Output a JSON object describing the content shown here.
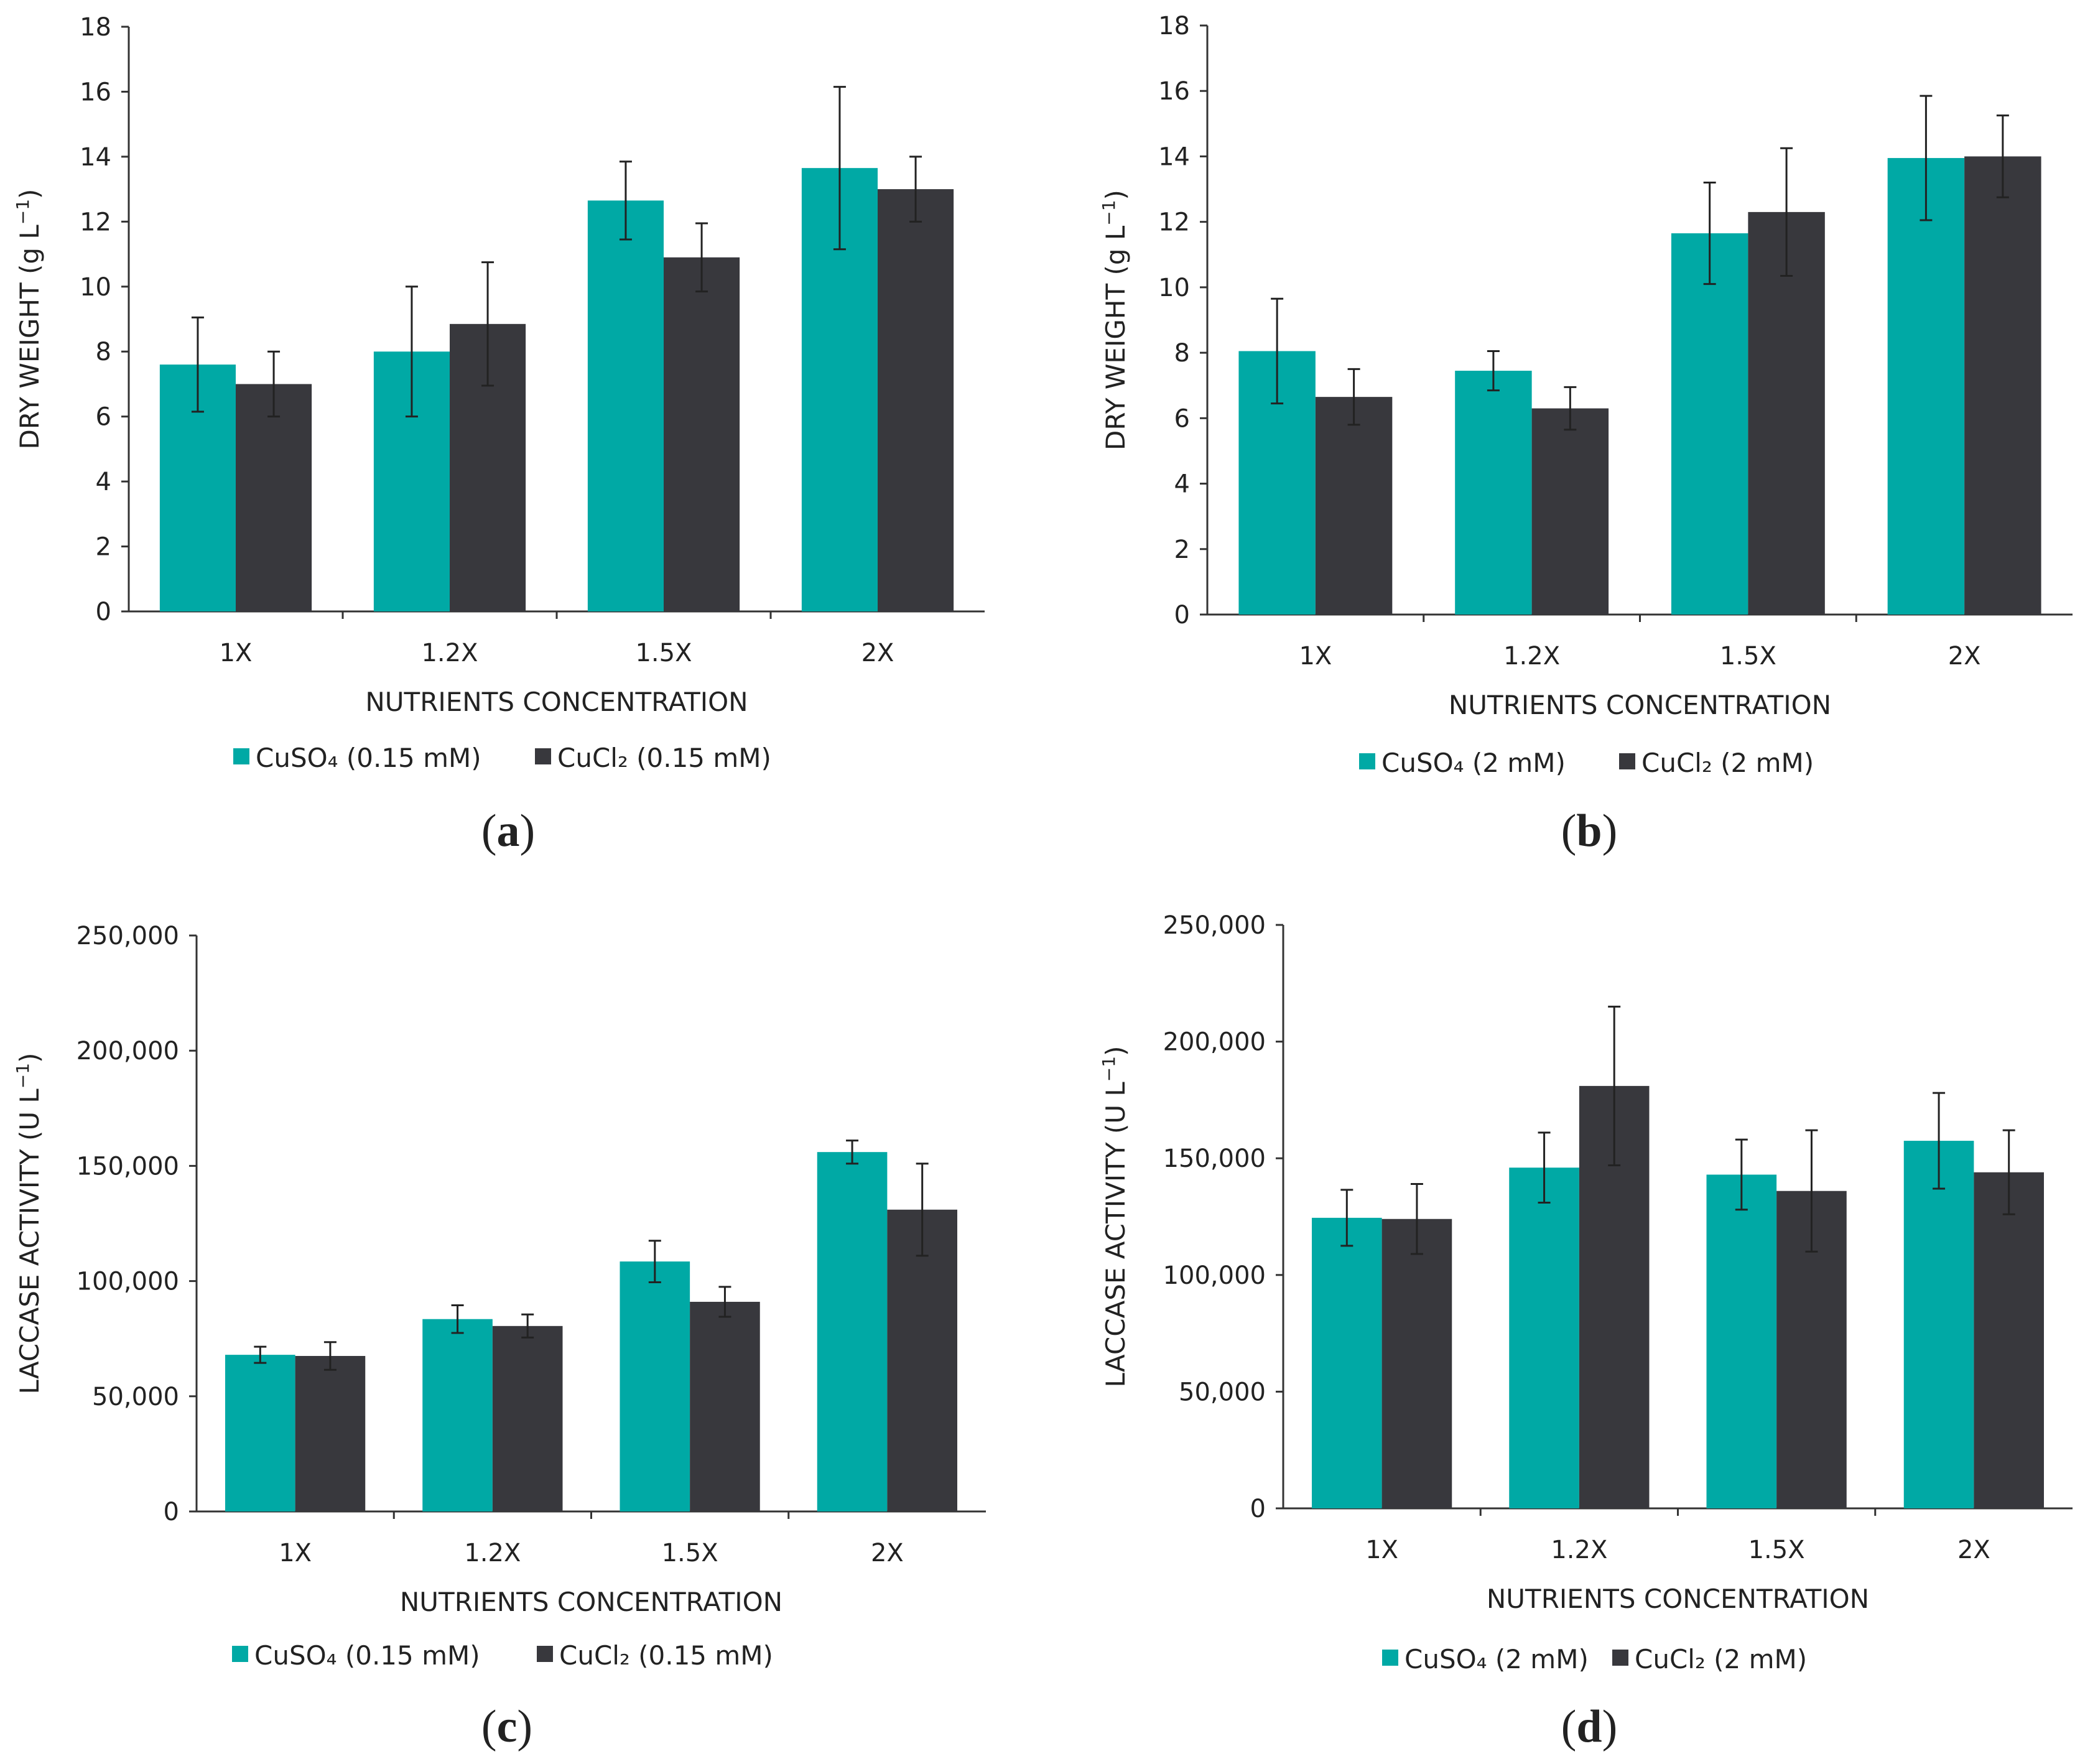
{
  "colors": {
    "cuso4": "#00A9A5",
    "cucl2": "#38383D",
    "axis": "#333333",
    "error": "#222222"
  },
  "chart_data": [
    {
      "panel": "a",
      "type": "bar",
      "xlabel": "NUTRIENTS CONCENTRATION",
      "ylabel": "DRY WEIGHT (g L",
      "ylabel_sup": "−1",
      "ylabel_end": ")",
      "ylim": [
        0,
        18
      ],
      "yticks": [
        0,
        2,
        4,
        6,
        8,
        10,
        12,
        14,
        16,
        18
      ],
      "ytick_labels": [
        "0",
        "2",
        "4",
        "6",
        "8",
        "10",
        "12",
        "14",
        "16",
        "18"
      ],
      "categories": [
        "1X",
        "1.2X",
        "1.5X",
        "2X"
      ],
      "series": [
        {
          "name": "CuSO₄  (0.15 mM)",
          "color_key": "cuso4",
          "values": [
            7.6,
            8.0,
            12.65,
            13.65
          ],
          "errors": [
            1.45,
            2.0,
            1.2,
            2.5
          ]
        },
        {
          "name": "CuCl₂   (0.15 mM)",
          "color_key": "cucl2",
          "values": [
            7.0,
            8.85,
            10.9,
            13.0
          ],
          "errors": [
            1.0,
            1.9,
            1.05,
            1.0
          ]
        }
      ],
      "legend": "bottom",
      "grid": false
    },
    {
      "panel": "b",
      "type": "bar",
      "xlabel": "NUTRIENTS CONCENTRATION",
      "ylabel": "DRY WEIGHT (g L",
      "ylabel_sup": "−1",
      "ylabel_end": ")",
      "ylim": [
        0,
        18
      ],
      "yticks": [
        0,
        2,
        4,
        6,
        8,
        10,
        12,
        14,
        16,
        18
      ],
      "ytick_labels": [
        "0",
        "2",
        "4",
        "6",
        "8",
        "10",
        "12",
        "14",
        "16",
        "18"
      ],
      "categories": [
        "1X",
        "1.2X",
        "1.5X",
        "2X"
      ],
      "series": [
        {
          "name": "CuSO₄  (2 mM)",
          "color_key": "cuso4",
          "values": [
            8.05,
            7.45,
            11.65,
            13.95
          ],
          "errors": [
            1.6,
            0.6,
            1.55,
            1.9
          ]
        },
        {
          "name": "CuCl₂   (2 mM)",
          "color_key": "cucl2",
          "values": [
            6.65,
            6.3,
            12.3,
            14.0
          ],
          "errors": [
            0.85,
            0.65,
            1.95,
            1.25
          ]
        }
      ],
      "legend": "bottom",
      "grid": false
    },
    {
      "panel": "c",
      "type": "bar",
      "xlabel": "NUTRIENTS CONCENTRATION",
      "ylabel": "LACCASE ACTIVITY (U L",
      "ylabel_sup": "−1",
      "ylabel_end": ")",
      "ylim": [
        0,
        250000
      ],
      "yticks": [
        0,
        50000,
        100000,
        150000,
        200000,
        250000
      ],
      "ytick_labels": [
        "0",
        "50,000",
        "100,000",
        "150,000",
        "200,000",
        "250,000"
      ],
      "categories": [
        "1X",
        "1.2X",
        "1.5X",
        "2X"
      ],
      "series": [
        {
          "name": "CuSO₄  (0.15 mM)",
          "color_key": "cuso4",
          "values": [
            68000,
            83500,
            108500,
            156000
          ],
          "errors": [
            3500,
            6000,
            9000,
            5000
          ]
        },
        {
          "name": "CuCl₂   (0.15 mM)",
          "color_key": "cucl2",
          "values": [
            67500,
            80500,
            91000,
            131000
          ],
          "errors": [
            6000,
            5000,
            6500,
            20000
          ]
        }
      ],
      "legend": "bottom",
      "grid": false
    },
    {
      "panel": "d",
      "type": "bar",
      "xlabel": "NUTRIENTS CONCENTRATION",
      "ylabel": "LACCASE ACTIVITY (U L",
      "ylabel_sup": "−1",
      "ylabel_end": ")",
      "ylim": [
        0,
        250000
      ],
      "yticks": [
        0,
        50000,
        100000,
        150000,
        200000,
        250000
      ],
      "ytick_labels": [
        "0",
        "50,000",
        "100,000",
        "150,000",
        "200,000",
        "250,000"
      ],
      "categories": [
        "1X",
        "1.2X",
        "1.5X",
        "2X"
      ],
      "series": [
        {
          "name": "CuSO₄  (2 mM)",
          "color_key": "cuso4",
          "values": [
            124500,
            146000,
            143000,
            157500
          ],
          "errors": [
            12000,
            15000,
            15000,
            20500
          ]
        },
        {
          "name": "CuCl₂   (2 mM)",
          "color_key": "cucl2",
          "values": [
            124000,
            181000,
            136000,
            144000
          ],
          "errors": [
            15000,
            34000,
            26000,
            18000
          ]
        }
      ],
      "legend": "bottom",
      "grid": false
    }
  ]
}
